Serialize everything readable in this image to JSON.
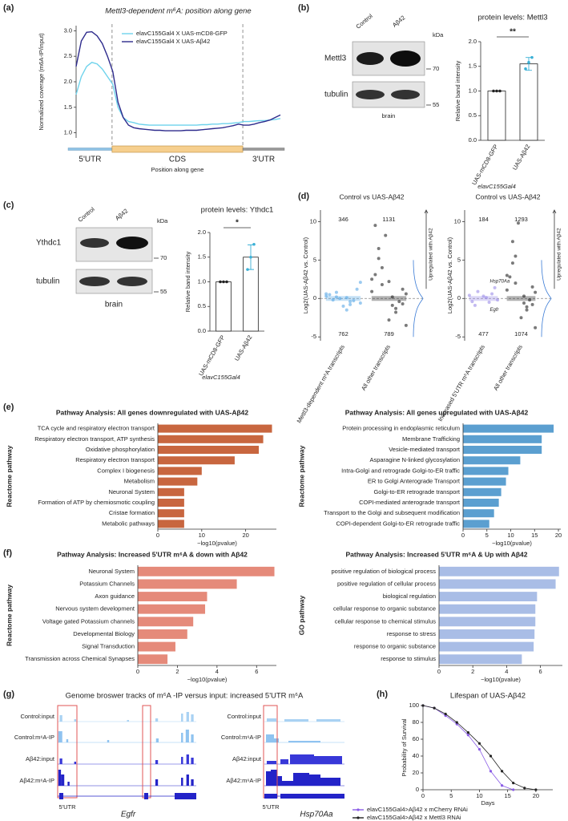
{
  "figure": {
    "panel_labels": [
      "(a)",
      "(b)",
      "(c)",
      "(d)",
      "(e)",
      "(f)",
      "(g)",
      "(h)"
    ],
    "blot_b": {
      "lanes": [
        "Control",
        "Aβ42"
      ],
      "unit": "kDa",
      "rows": [
        {
          "label": "Mettl3",
          "marker": "70"
        },
        {
          "label": "tubulin",
          "marker": "55"
        }
      ],
      "tissue": "brain"
    },
    "blot_c": {
      "lanes": [
        "Control",
        "Aβ42"
      ],
      "unit": "kDa",
      "rows": [
        {
          "label": "Ythdc1",
          "marker": "70"
        },
        {
          "label": "tubulin",
          "marker": "55"
        }
      ],
      "tissue": "brain"
    },
    "tracks": {
      "title": "Genome broswer tracks of m⁶A -IP versus input: increased 5'UTR m⁶A",
      "rows": [
        "Control:input",
        "Control:m⁶A-IP",
        "Aβ42:input",
        "Aβ42:m⁶A-IP"
      ],
      "region": "5'UTR",
      "genes": [
        "Egfr",
        "Hsp70Aa"
      ]
    }
  },
  "chart_data": [
    {
      "type": "line",
      "title": "Mettl3-dependent m⁶A: position along gene",
      "y_label": "Normalized coverage (m6A-IP/input)",
      "x_label": "Position along gene",
      "regions": [
        "5'UTR",
        "CDS",
        "3'UTR"
      ],
      "ylim": [
        0.9,
        3.1
      ],
      "yticks": [
        {
          "value": 1,
          "label": "1.0"
        },
        1.5,
        {
          "value": 2,
          "label": "2.0"
        },
        2.5,
        {
          "value": 3,
          "label": "3.0"
        }
      ],
      "series": [
        {
          "name": "elavC155Gal4 X UAS-mCD8-GFP",
          "color": "#6fd3ec",
          "values": [
            1.75,
            2.1,
            2.3,
            2.38,
            2.35,
            2.25,
            2.1,
            1.95,
            1.5,
            1.3,
            1.22,
            1.2,
            1.17,
            1.16,
            1.15,
            1.15,
            1.15,
            1.15,
            1.15,
            1.15,
            1.15,
            1.15,
            1.15,
            1.15,
            1.16,
            1.16,
            1.17,
            1.17,
            1.18,
            1.18,
            1.19,
            1.2,
            1.22,
            1.22,
            1.23,
            1.24,
            1.24,
            1.25,
            1.26,
            1.28
          ]
        },
        {
          "name": "elavC155Gal4 X UAS-Aβ42",
          "color": "#2d2a8c",
          "values": [
            2.3,
            2.8,
            2.97,
            2.98,
            2.9,
            2.75,
            2.5,
            2.2,
            1.6,
            1.3,
            1.15,
            1.1,
            1.08,
            1.07,
            1.06,
            1.05,
            1.05,
            1.04,
            1.04,
            1.04,
            1.04,
            1.05,
            1.05,
            1.05,
            1.06,
            1.07,
            1.08,
            1.09,
            1.1,
            1.12,
            1.14,
            1.17,
            1.15,
            1.15,
            1.17,
            1.2,
            1.22,
            1.25,
            1.3,
            1.35
          ]
        }
      ]
    },
    {
      "type": "bar",
      "title": "protein levels: Mettl3",
      "y_label": "Relative band intensity",
      "x_label": "elavC155Gal4",
      "significance": "**",
      "categories": [
        "UAS-mCD8-GFP",
        "UAS-Aβ42"
      ],
      "values": [
        1.0,
        1.55
      ],
      "errors": [
        0,
        0.13
      ],
      "points": [
        [
          1,
          1,
          1
        ],
        [
          1.45,
          1.58,
          1.68
        ]
      ],
      "point_colors": [
        "#222222",
        "#3ab0d6"
      ],
      "color": "#ffffff",
      "ylim": [
        0,
        2
      ],
      "yticks": [
        {
          "value": 0,
          "label": "0.0"
        },
        0.5,
        {
          "value": 1,
          "label": "1.0"
        },
        1.5,
        {
          "value": 2,
          "label": "2.0"
        }
      ]
    },
    {
      "type": "bar",
      "title": "protein levels: Ythdc1",
      "y_label": "Relative band intensity",
      "x_label": "elavC155Gal4",
      "significance": "*",
      "categories": [
        "UAS-mCD8-GFP",
        "UAS-Aβ42"
      ],
      "values": [
        1.0,
        1.5
      ],
      "errors": [
        0,
        0.25
      ],
      "points": [
        [
          1,
          1,
          1
        ],
        [
          1.25,
          1.5,
          1.76
        ]
      ],
      "point_colors": [
        "#222222",
        "#3ab0d6"
      ],
      "color": "#ffffff",
      "ylim": [
        0,
        2
      ],
      "yticks": [
        {
          "value": 0,
          "label": "0.0"
        },
        0.5,
        {
          "value": 1,
          "label": "1.0"
        },
        1.5,
        {
          "value": 2,
          "label": "2.0"
        }
      ]
    },
    {
      "type": "strip",
      "title": "Control vs UAS-Aβ42",
      "y_label": "Log2(UAS-Aβ42 vs. Control)",
      "side_label": "Upregulated with Aβ42",
      "categories": [
        "Mettl3-dependent m⁶A transcripts",
        "All other transcripts"
      ],
      "up_counts": [
        346,
        1131
      ],
      "down_counts": [
        762,
        789
      ],
      "groups": [
        {
          "color": "#5aa9e6",
          "values": [
            0.3,
            -0.4,
            0.8,
            -0.6,
            0.1,
            -0.2,
            1.2,
            -1.0,
            0.5,
            -0.3,
            0.0,
            0.6,
            -0.8,
            0.2,
            2.1,
            -1.5
          ]
        },
        {
          "color": "#222222",
          "values": [
            2.5,
            -1.8,
            4.0,
            0.6,
            -0.9,
            6.5,
            1.2,
            -2.8,
            3.1,
            -0.4,
            8.2,
            0.9,
            -1.3,
            1.8,
            -3.5,
            0.2,
            5.2,
            -0.7,
            2.2,
            9.5
          ]
        }
      ],
      "ylim": [
        -5.5,
        11.5
      ],
      "yticks": [
        -5,
        0,
        5,
        10
      ]
    },
    {
      "type": "strip",
      "title": "Control vs UAS-Aβ42",
      "y_label": "Log2(UAS-Aβ42 vs. Control)",
      "side_label": "Upregulated with Aβ42",
      "categories": [
        "Increased 5'UTR m⁶A transcripts",
        "All other transcripts"
      ],
      "up_counts": [
        184,
        1293
      ],
      "down_counts": [
        477,
        1074
      ],
      "annotations": [
        "Hsp70Aa",
        "Egfr"
      ],
      "groups": [
        {
          "color": "#9b8ce8",
          "values": [
            0.4,
            -0.5,
            0.9,
            -0.2,
            0.1,
            -0.9,
            1.4,
            0.3,
            -0.4,
            0.6
          ]
        },
        {
          "color": "#222222",
          "values": [
            3.0,
            -1.5,
            5.5,
            0.8,
            -0.6,
            7.4,
            1.5,
            -2.5,
            2.8,
            -0.2,
            9.8,
            1.1,
            -1.1,
            2.0,
            -3.8,
            0.3,
            4.6,
            -0.8
          ]
        }
      ],
      "ylim": [
        -5.5,
        11.5
      ],
      "yticks": [
        -5,
        0,
        5,
        10
      ]
    },
    {
      "type": "barh",
      "title": "Pathway Analysis: All genes downregulated with UAS-Aβ42",
      "y_label": "Reactome pathway",
      "x_label": "−log10(pvalue)",
      "categories": [
        "TCA cycle and respiratory electron transport",
        "Respiratory electron transport, ATP synthesis",
        "Oxidative phosphorylation",
        "Respiratory electron transport",
        "Complex I biogenesis",
        "Metabolism",
        "Neuronal System",
        "Formation of ATP by chemiosmotic coupling",
        "Cristae formation",
        "Metabolic pathways"
      ],
      "values": [
        26,
        24,
        23,
        17.5,
        10,
        9,
        6,
        6,
        6,
        6
      ],
      "color": "#c8663f",
      "xlim": [
        0,
        27
      ],
      "xticks": [
        0,
        10,
        20
      ]
    },
    {
      "type": "barh",
      "title": "Pathway Analysis: All genes upregulated with UAS-Aβ42",
      "y_label": "Reactome pathway",
      "x_label": "−log10(pvalue)",
      "categories": [
        "Protein processing in endoplasmic reticulum",
        "Membrane Trafficking",
        "Vesicle-mediated transport",
        "Asparagine N-linked glycosylation",
        "Intra-Golgi and retrograde Golgi-to-ER traffic",
        "ER to Golgi Anterograde Transport",
        "Golgi-to-ER retrograde transport",
        "COPI-mediated anterograde transport",
        "Transport to the Golgi and subsequent modification",
        "COPI-dependent Golgi-to-ER retrograde traffic"
      ],
      "values": [
        19,
        16.5,
        16.5,
        12,
        9.5,
        9,
        8,
        7.5,
        6.5,
        5.5
      ],
      "color": "#5b9fd0",
      "xlim": [
        0,
        20.5
      ],
      "xticks": [
        0,
        5,
        10,
        15,
        20
      ]
    },
    {
      "type": "barh",
      "title": "Pathway Analysis: Increased 5'UTR m⁶A & down with Aβ42",
      "y_label": "Reactome pathway",
      "x_label": "−log10(pvalue)",
      "categories": [
        "Neuronal System",
        "Potassium Channels",
        "Axon guidance",
        "Nervous system development",
        "Voltage gated Potassium channels",
        "Developmental Biology",
        "Signal Transduction",
        "Transmission across Chemical Synapses"
      ],
      "values": [
        6.9,
        5.0,
        3.5,
        3.4,
        2.8,
        2.5,
        1.9,
        1.5
      ],
      "color": "#e58a7a",
      "xlim": [
        0,
        7
      ],
      "xticks": [
        0,
        2,
        4,
        6
      ]
    },
    {
      "type": "barh",
      "title": "Pathway Analysis: Increased 5'UTR m⁶A & Up with Aβ42",
      "y_label": "GO pathway",
      "x_label": "−log10(pvalue)",
      "categories": [
        "positive regulation of biological process",
        "positive regulation of cellular process",
        "biological regulation",
        "cellular response to organic substance",
        "cellular response to chemical stimulus",
        "response to stress",
        "response to organic substance",
        "response to stimulus"
      ],
      "values": [
        7.1,
        6.9,
        5.8,
        5.7,
        5.7,
        5.65,
        5.6,
        4.9
      ],
      "color": "#a9bde6",
      "xlim": [
        0,
        7.3
      ],
      "xticks": [
        0,
        2,
        4,
        6
      ]
    },
    {
      "type": "line",
      "title": "Lifespan of UAS-Aβ42",
      "y_label": "Probability of Survival",
      "x_label": "Days",
      "markers": true,
      "xlim": [
        0,
        23
      ],
      "xticks": [
        0,
        5,
        10,
        15,
        20
      ],
      "ylim": [
        0,
        100
      ],
      "yticks": [
        0,
        20,
        40,
        60,
        80,
        100
      ],
      "series": [
        {
          "name": "elavC155Gal4>Aβ42 x mCherry RNAi",
          "color": "#8a5ce6",
          "x": [
            0,
            2,
            4,
            6,
            8,
            10,
            12,
            14,
            16
          ],
          "values": [
            100,
            97,
            88,
            78,
            65,
            48,
            22,
            5,
            0
          ]
        },
        {
          "name": "elavC155Gal4>Aβ42 x Mettl3 RNAi",
          "color": "#222222",
          "x": [
            0,
            2,
            4,
            6,
            8,
            10,
            12,
            14,
            16,
            18,
            20
          ],
          "values": [
            100,
            97,
            90,
            80,
            68,
            55,
            40,
            22,
            8,
            2,
            0
          ]
        }
      ]
    }
  ]
}
